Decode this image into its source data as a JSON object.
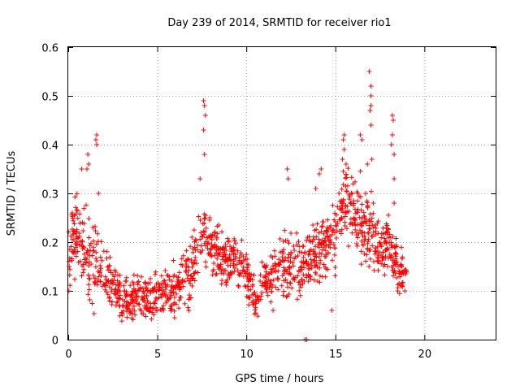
{
  "chart_data": {
    "type": "scatter",
    "title": "Day 239 of 2014, SRMTID for receiver rio1",
    "xlabel": "GPS time / hours",
    "ylabel": "SRMTID / TECUs",
    "xlim": [
      0,
      24
    ],
    "ylim": [
      0,
      0.6
    ],
    "xticks": [
      0,
      5,
      10,
      15,
      20
    ],
    "yticks": [
      0,
      0.1,
      0.2,
      0.3,
      0.4,
      0.5,
      0.6
    ],
    "xtick_labels": [
      "0",
      "5",
      "10",
      "15",
      "20"
    ],
    "ytick_labels": [
      "0",
      "0.1",
      "0.2",
      "0.3",
      "0.4",
      "0.5",
      "0.6"
    ],
    "grid": true,
    "marker": "+",
    "color": "#ff0000",
    "trend": [
      {
        "x": 0.0,
        "y": 0.16,
        "spread": 0.05
      },
      {
        "x": 0.3,
        "y": 0.22,
        "spread": 0.06
      },
      {
        "x": 0.6,
        "y": 0.2,
        "spread": 0.06
      },
      {
        "x": 1.0,
        "y": 0.17,
        "spread": 0.07
      },
      {
        "x": 1.5,
        "y": 0.16,
        "spread": 0.08
      },
      {
        "x": 2.0,
        "y": 0.14,
        "spread": 0.05
      },
      {
        "x": 2.5,
        "y": 0.11,
        "spread": 0.04
      },
      {
        "x": 3.0,
        "y": 0.08,
        "spread": 0.03
      },
      {
        "x": 4.0,
        "y": 0.09,
        "spread": 0.035
      },
      {
        "x": 5.0,
        "y": 0.09,
        "spread": 0.035
      },
      {
        "x": 6.0,
        "y": 0.1,
        "spread": 0.04
      },
      {
        "x": 7.0,
        "y": 0.15,
        "spread": 0.05
      },
      {
        "x": 7.6,
        "y": 0.22,
        "spread": 0.05
      },
      {
        "x": 8.5,
        "y": 0.17,
        "spread": 0.04
      },
      {
        "x": 9.5,
        "y": 0.16,
        "spread": 0.04
      },
      {
        "x": 10.0,
        "y": 0.14,
        "spread": 0.04
      },
      {
        "x": 10.5,
        "y": 0.08,
        "spread": 0.03
      },
      {
        "x": 11.0,
        "y": 0.12,
        "spread": 0.035
      },
      {
        "x": 12.0,
        "y": 0.15,
        "spread": 0.05
      },
      {
        "x": 13.0,
        "y": 0.15,
        "spread": 0.05
      },
      {
        "x": 14.0,
        "y": 0.18,
        "spread": 0.05
      },
      {
        "x": 15.0,
        "y": 0.22,
        "spread": 0.06
      },
      {
        "x": 15.5,
        "y": 0.3,
        "spread": 0.07
      },
      {
        "x": 16.5,
        "y": 0.24,
        "spread": 0.06
      },
      {
        "x": 17.0,
        "y": 0.22,
        "spread": 0.06
      },
      {
        "x": 17.5,
        "y": 0.18,
        "spread": 0.05
      },
      {
        "x": 18.0,
        "y": 0.2,
        "spread": 0.04
      },
      {
        "x": 18.5,
        "y": 0.15,
        "spread": 0.04
      },
      {
        "x": 19.0,
        "y": 0.12,
        "spread": 0.03
      }
    ],
    "notable_points": [
      {
        "x": 1.6,
        "y": 0.42
      },
      {
        "x": 1.55,
        "y": 0.41
      },
      {
        "x": 1.6,
        "y": 0.4
      },
      {
        "x": 1.1,
        "y": 0.38
      },
      {
        "x": 1.15,
        "y": 0.36
      },
      {
        "x": 1.05,
        "y": 0.35
      },
      {
        "x": 0.75,
        "y": 0.35
      },
      {
        "x": 1.7,
        "y": 0.3
      },
      {
        "x": 7.6,
        "y": 0.49
      },
      {
        "x": 7.65,
        "y": 0.48
      },
      {
        "x": 7.7,
        "y": 0.46
      },
      {
        "x": 7.6,
        "y": 0.43
      },
      {
        "x": 7.65,
        "y": 0.38
      },
      {
        "x": 7.4,
        "y": 0.33
      },
      {
        "x": 12.3,
        "y": 0.35
      },
      {
        "x": 12.35,
        "y": 0.33
      },
      {
        "x": 11.5,
        "y": 0.06
      },
      {
        "x": 14.2,
        "y": 0.35
      },
      {
        "x": 14.1,
        "y": 0.34
      },
      {
        "x": 13.9,
        "y": 0.31
      },
      {
        "x": 13.3,
        "y": 0.0
      },
      {
        "x": 13.4,
        "y": 0.0
      },
      {
        "x": 14.8,
        "y": 0.06
      },
      {
        "x": 15.5,
        "y": 0.42
      },
      {
        "x": 15.45,
        "y": 0.41
      },
      {
        "x": 15.5,
        "y": 0.39
      },
      {
        "x": 15.4,
        "y": 0.37
      },
      {
        "x": 15.6,
        "y": 0.36
      },
      {
        "x": 16.4,
        "y": 0.42
      },
      {
        "x": 16.5,
        "y": 0.41
      },
      {
        "x": 16.9,
        "y": 0.55
      },
      {
        "x": 17.0,
        "y": 0.52
      },
      {
        "x": 17.0,
        "y": 0.5
      },
      {
        "x": 17.0,
        "y": 0.48
      },
      {
        "x": 16.95,
        "y": 0.47
      },
      {
        "x": 17.0,
        "y": 0.44
      },
      {
        "x": 17.05,
        "y": 0.37
      },
      {
        "x": 16.8,
        "y": 0.36
      },
      {
        "x": 18.2,
        "y": 0.46
      },
      {
        "x": 18.25,
        "y": 0.45
      },
      {
        "x": 18.2,
        "y": 0.42
      },
      {
        "x": 18.15,
        "y": 0.4
      },
      {
        "x": 18.3,
        "y": 0.38
      },
      {
        "x": 18.3,
        "y": 0.33
      },
      {
        "x": 18.3,
        "y": 0.28
      },
      {
        "x": 18.5,
        "y": 0.1
      },
      {
        "x": 18.9,
        "y": 0.1
      }
    ]
  }
}
